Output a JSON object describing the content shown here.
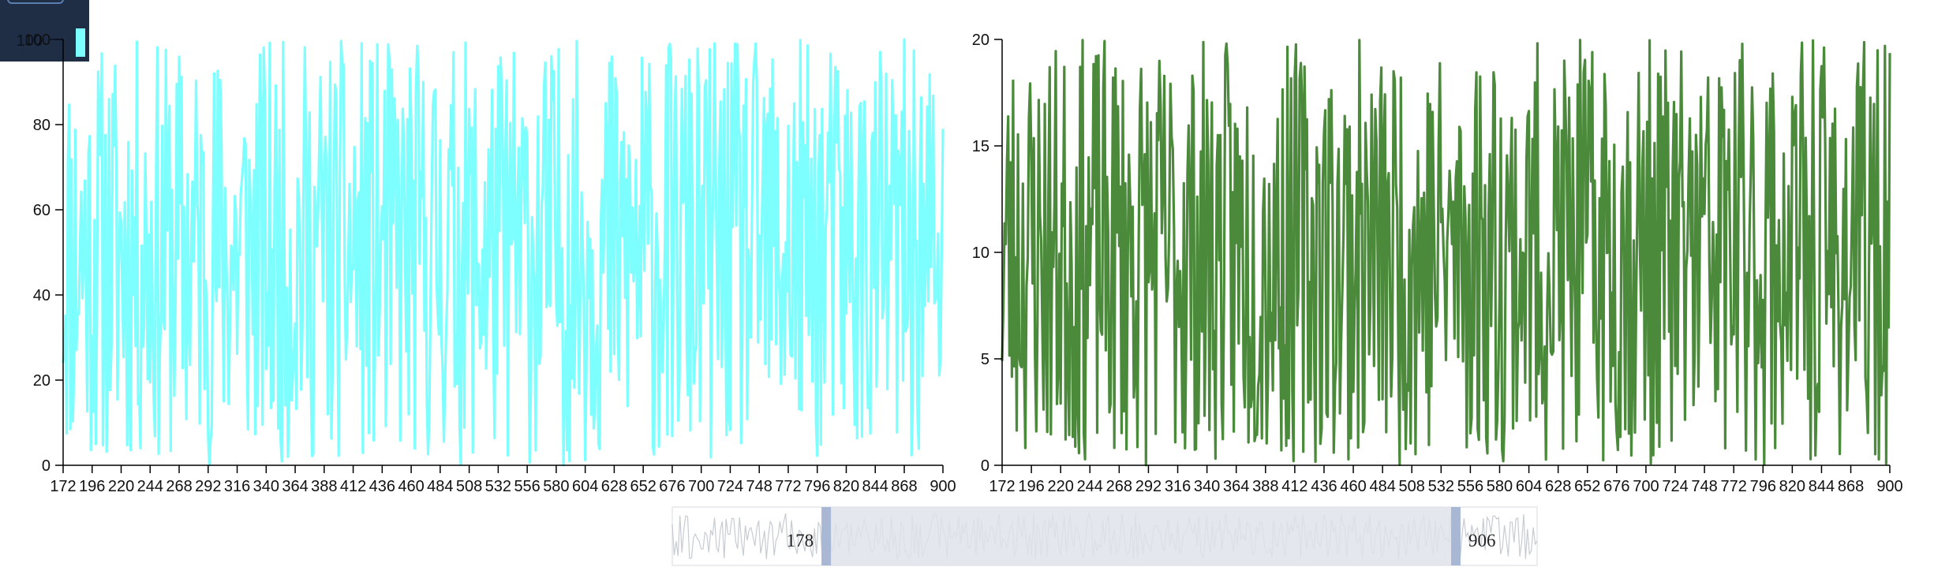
{
  "chart_data": [
    {
      "type": "line",
      "color": "#7effff",
      "x_range": [
        172,
        900
      ],
      "x_ticks": [
        "172",
        "196",
        "220",
        "244",
        "268",
        "292",
        "316",
        "340",
        "364",
        "388",
        "412",
        "436",
        "460",
        "484",
        "508",
        "532",
        "556",
        "580",
        "604",
        "628",
        "652",
        "676",
        "700",
        "724",
        "748",
        "772",
        "796",
        "820",
        "844",
        "868",
        "900"
      ],
      "y_ticks": [
        "0",
        "20",
        "40",
        "60",
        "80",
        "100"
      ],
      "ylim": [
        0,
        100
      ],
      "seed": 11
    },
    {
      "type": "line",
      "color": "#4a8a3a",
      "x_range": [
        172,
        900
      ],
      "x_ticks": [
        "172",
        "196",
        "220",
        "244",
        "268",
        "292",
        "316",
        "340",
        "364",
        "388",
        "412",
        "436",
        "460",
        "484",
        "508",
        "532",
        "556",
        "580",
        "604",
        "628",
        "652",
        "676",
        "700",
        "724",
        "748",
        "772",
        "796",
        "820",
        "844",
        "868",
        "900"
      ],
      "y_ticks": [
        "0",
        "5",
        "10",
        "15",
        "20"
      ],
      "ylim": [
        0,
        20
      ],
      "seed": 23
    }
  ],
  "range_slider": {
    "start_label": "178",
    "end_label": "906",
    "start_value": 178,
    "end_value": 906,
    "domain": [
      0,
      1000
    ],
    "handle_color": "#a8b8d4",
    "selection_color": "#dfe3ea"
  },
  "minimap": {
    "bg_color": "#1f2d45",
    "tick_label": "100",
    "bar_color": "#7effff"
  }
}
